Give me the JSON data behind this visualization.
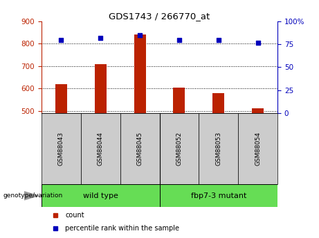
{
  "title": "GDS1743 / 266770_at",
  "samples": [
    "GSM88043",
    "GSM88044",
    "GSM88045",
    "GSM88052",
    "GSM88053",
    "GSM88054"
  ],
  "counts": [
    620,
    710,
    840,
    605,
    578,
    510
  ],
  "percentile_ranks": [
    80,
    82,
    85,
    80,
    80,
    77
  ],
  "ylim_left": [
    490,
    900
  ],
  "ylim_right": [
    0,
    100
  ],
  "yticks_left": [
    500,
    600,
    700,
    800,
    900
  ],
  "yticks_right": [
    0,
    25,
    50,
    75,
    100
  ],
  "bar_color": "#bb2200",
  "dot_color": "#0000bb",
  "group1_label": "wild type",
  "group2_label": "fbp7-3 mutant",
  "group_bg_color": "#66dd55",
  "sample_bg_color": "#cccccc",
  "legend_count_color": "#bb2200",
  "legend_pct_color": "#0000bb",
  "genotype_label": "genotype/variation",
  "arrow_color": "#999999",
  "bar_width": 0.3
}
